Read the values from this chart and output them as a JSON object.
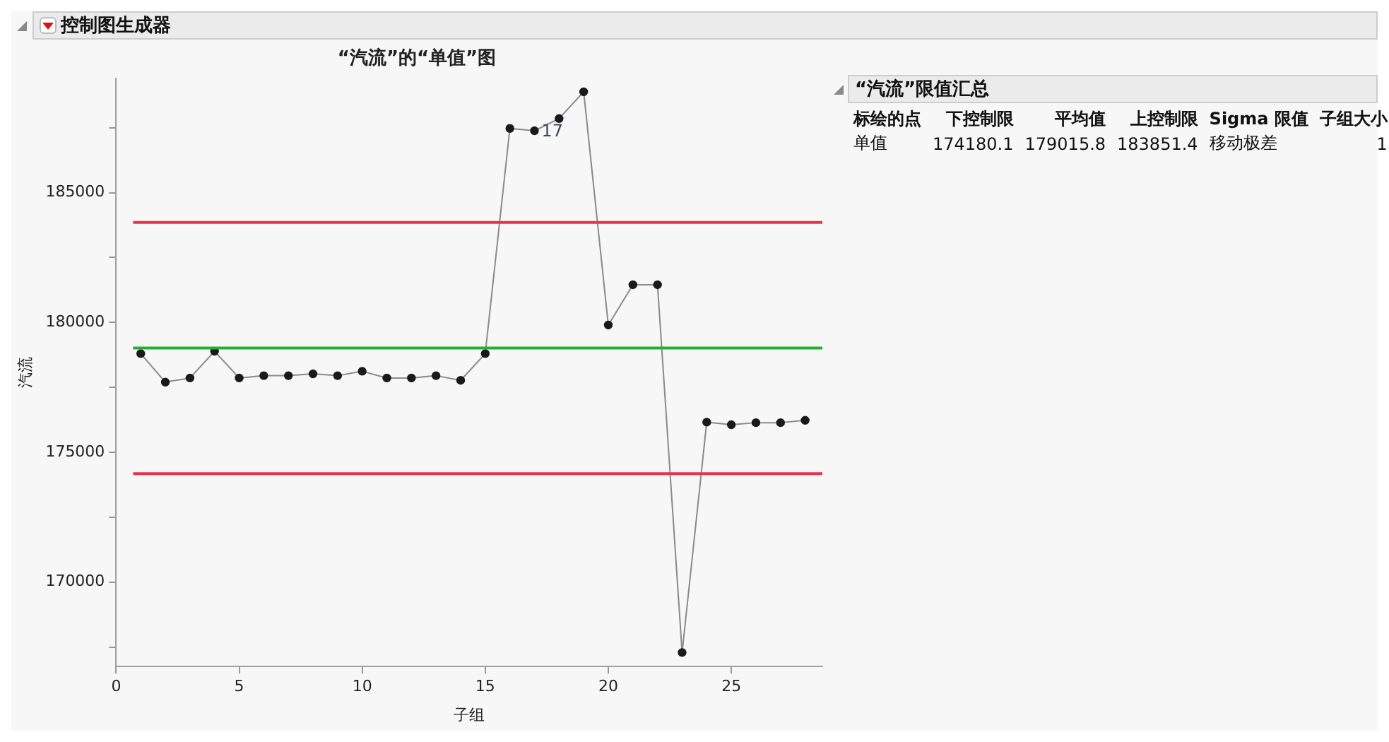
{
  "chart_data": {
    "type": "line",
    "title": "“汽流”的“单值”图",
    "xlabel": "子组",
    "ylabel": "汽流",
    "x": [
      1,
      2,
      3,
      4,
      5,
      6,
      7,
      8,
      9,
      10,
      11,
      12,
      13,
      14,
      15,
      16,
      17,
      18,
      19,
      20,
      21,
      22,
      23,
      24,
      25,
      26,
      27,
      28
    ],
    "series": [
      {
        "color": "#1a1a1a",
        "values": [
          178800,
          177700,
          177860,
          178890,
          177860,
          177950,
          177950,
          178020,
          177950,
          178120,
          177860,
          177860,
          177950,
          177770,
          178800,
          187470,
          187380,
          187850,
          188880,
          179900,
          181450,
          181450,
          167290,
          176160,
          176060,
          176140,
          176140,
          176230
        ]
      }
    ],
    "xlim": [
      0,
      28.7
    ],
    "xticks": [
      0,
      5,
      10,
      15,
      20,
      25
    ],
    "ylim": [
      166750,
      189390
    ],
    "yticks": [
      {
        "value": 167500,
        "label": null
      },
      170000,
      {
        "value": 172500,
        "label": null
      },
      175000,
      {
        "value": 177500,
        "label": null
      },
      180000,
      {
        "value": 182500,
        "label": null
      },
      185000,
      {
        "value": 187500,
        "label": null
      }
    ],
    "ref_lines": [
      {
        "axis": "y",
        "value": 174180.1,
        "color": "#e8334a"
      },
      {
        "axis": "y",
        "value": 179015.8,
        "color": "#22b02e"
      },
      {
        "axis": "y",
        "value": 183851.4,
        "color": "#e8334a"
      }
    ],
    "annotations": [
      {
        "text": "17",
        "x": 17,
        "y": 187380
      },
      "控制图生成器",
      "“汽流”限值汇总",
      "标绘的点",
      "下控制限",
      "平均值",
      "上控制限",
      "Sigma 限值",
      "子组大小",
      "单值",
      "174180.1",
      "179015.8",
      "183851.4",
      "移动极差",
      "1"
    ],
    "grid": false,
    "legend": false,
    "marker": "circle",
    "line_style": "solid"
  }
}
